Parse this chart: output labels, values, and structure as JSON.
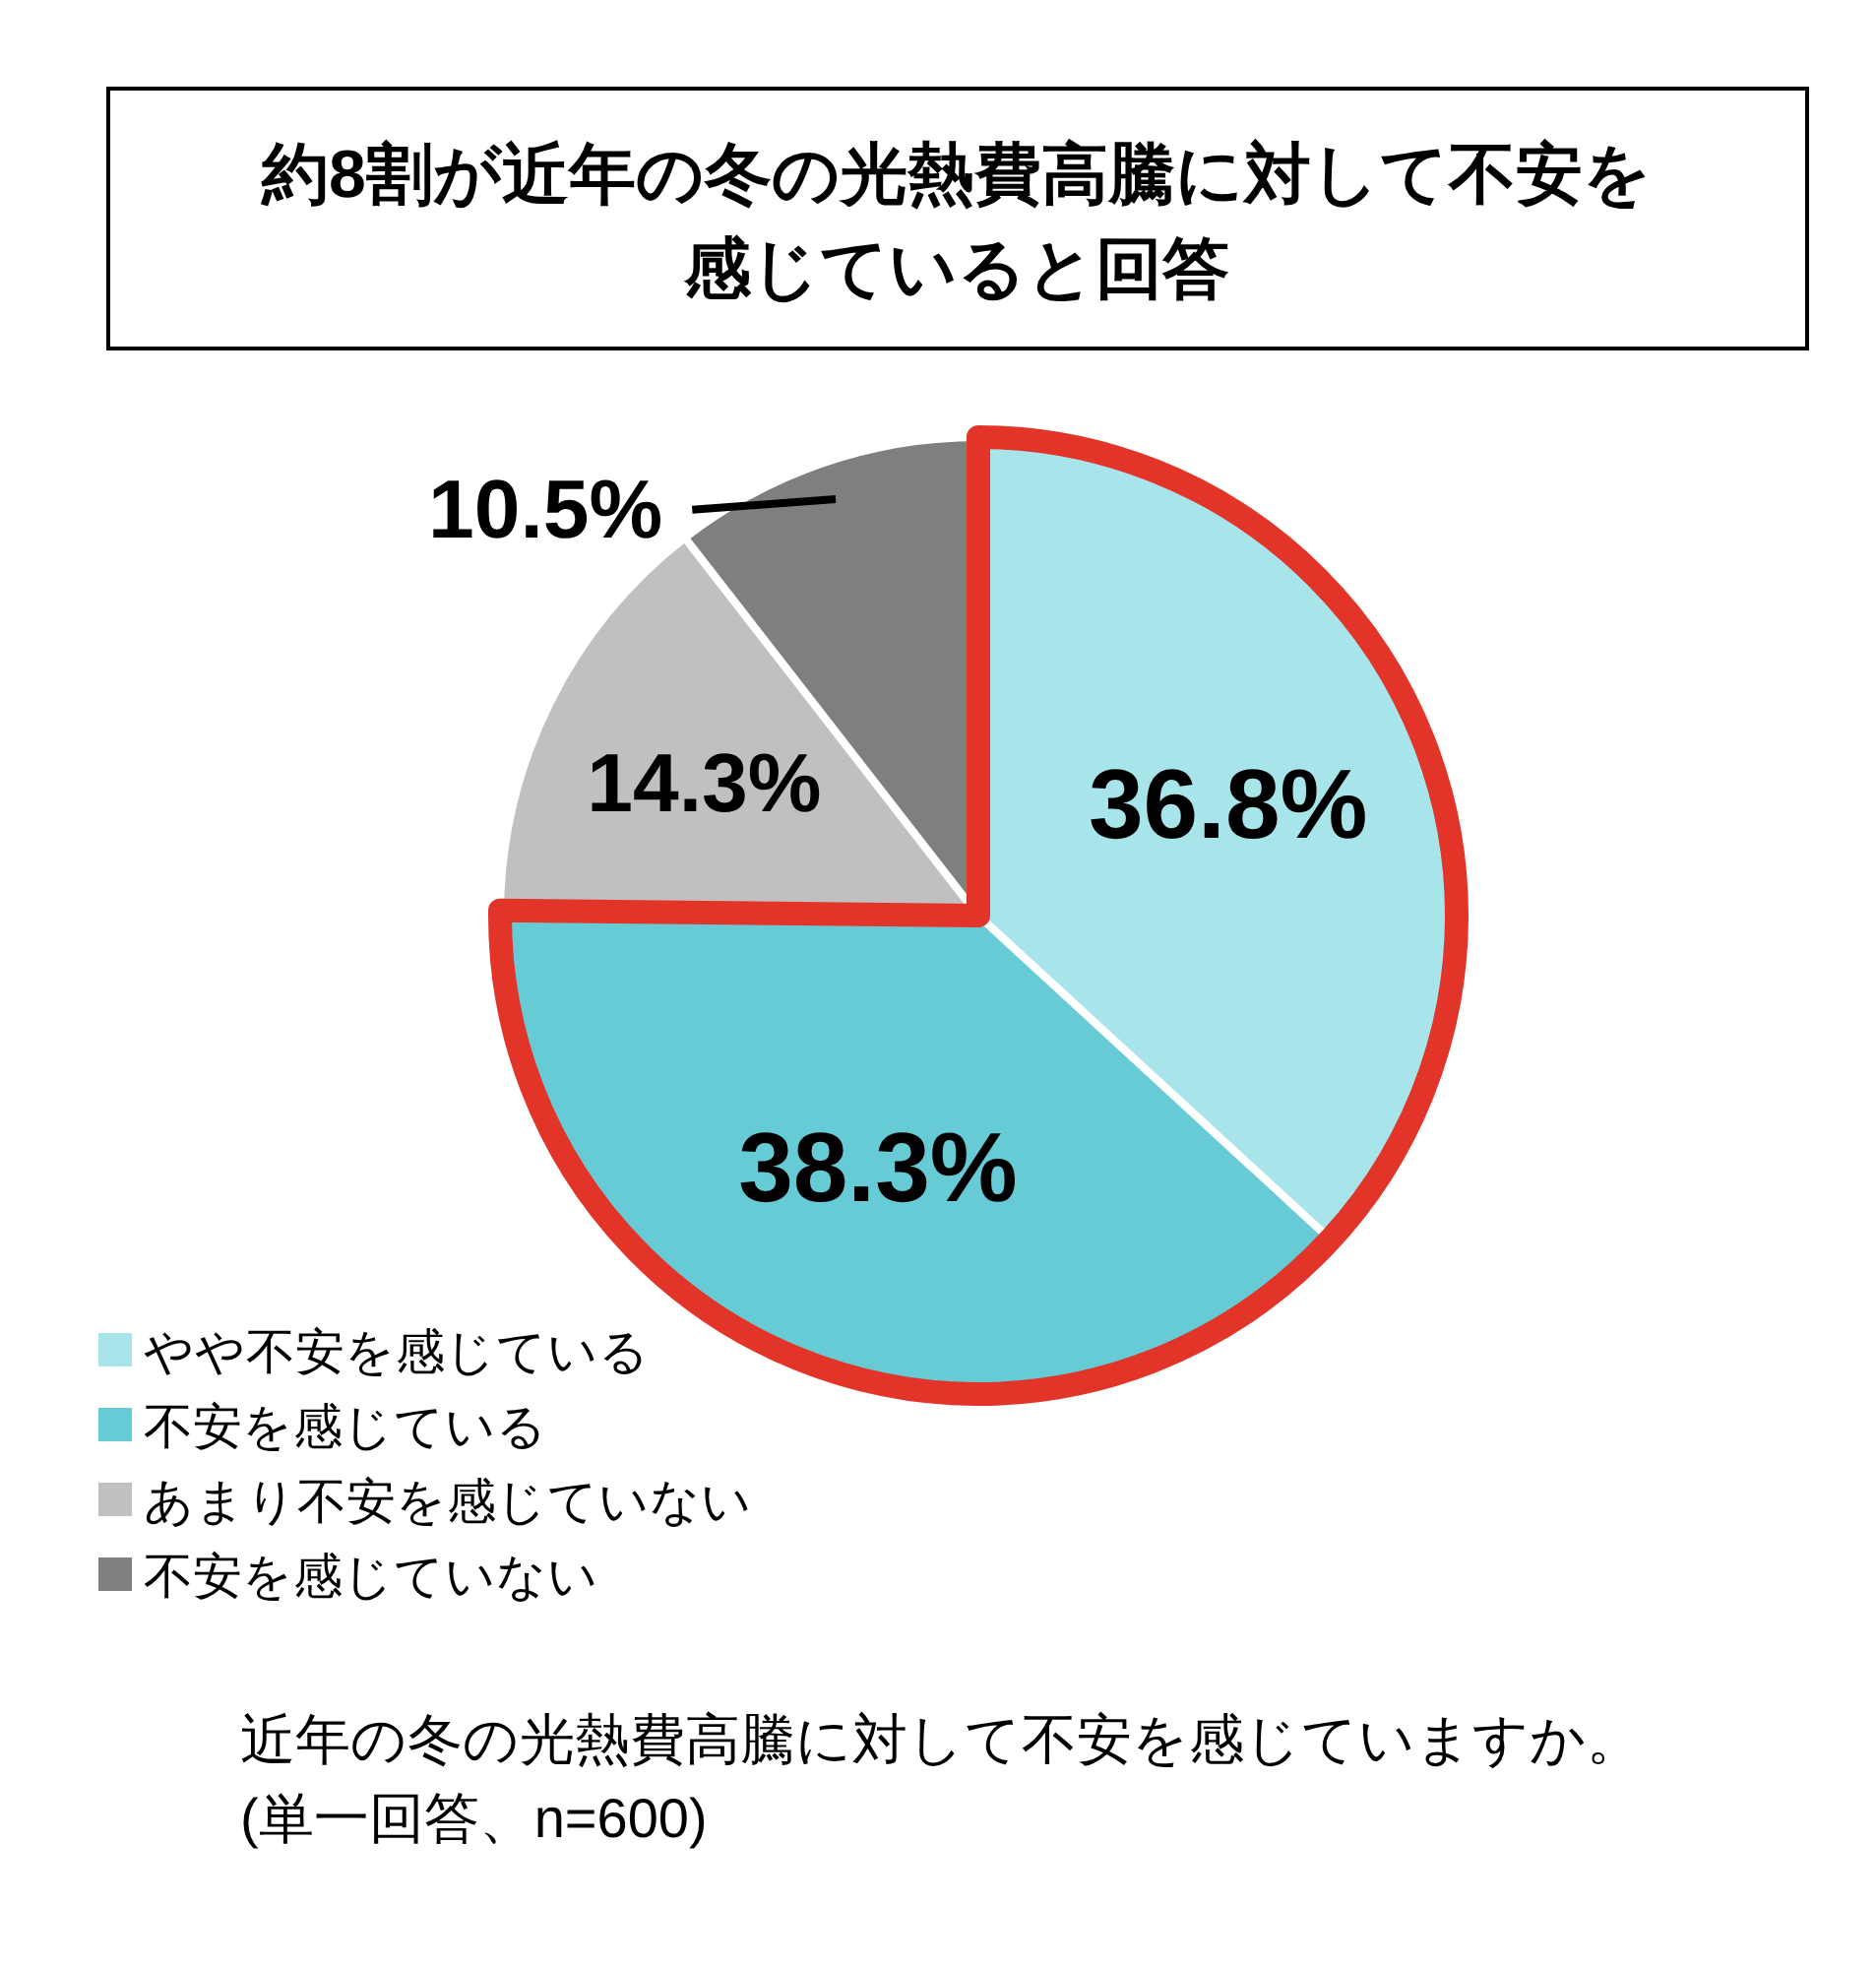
{
  "chart_data": {
    "type": "pie",
    "title": "約8割が近年の冬の光熱費高騰に対して不安を感じていると回答",
    "categories": [
      "やや不安を感じている",
      "不安を感じている",
      "あまり不安を感じていない",
      "不安を感じていない"
    ],
    "values": [
      36.8,
      38.3,
      14.3,
      10.5
    ],
    "colors": [
      "#a8e5eb",
      "#66cbd5",
      "#c0c0c0",
      "#7f7f7f"
    ],
    "value_labels": [
      "36.8%",
      "38.3%",
      "14.3%",
      "10.5%"
    ],
    "legend": "bottom left",
    "annotations": [
      "近年の冬の光熱費高騰に対して不安を感じていますか。",
      "(単一回答、n=600)"
    ]
  }
}
